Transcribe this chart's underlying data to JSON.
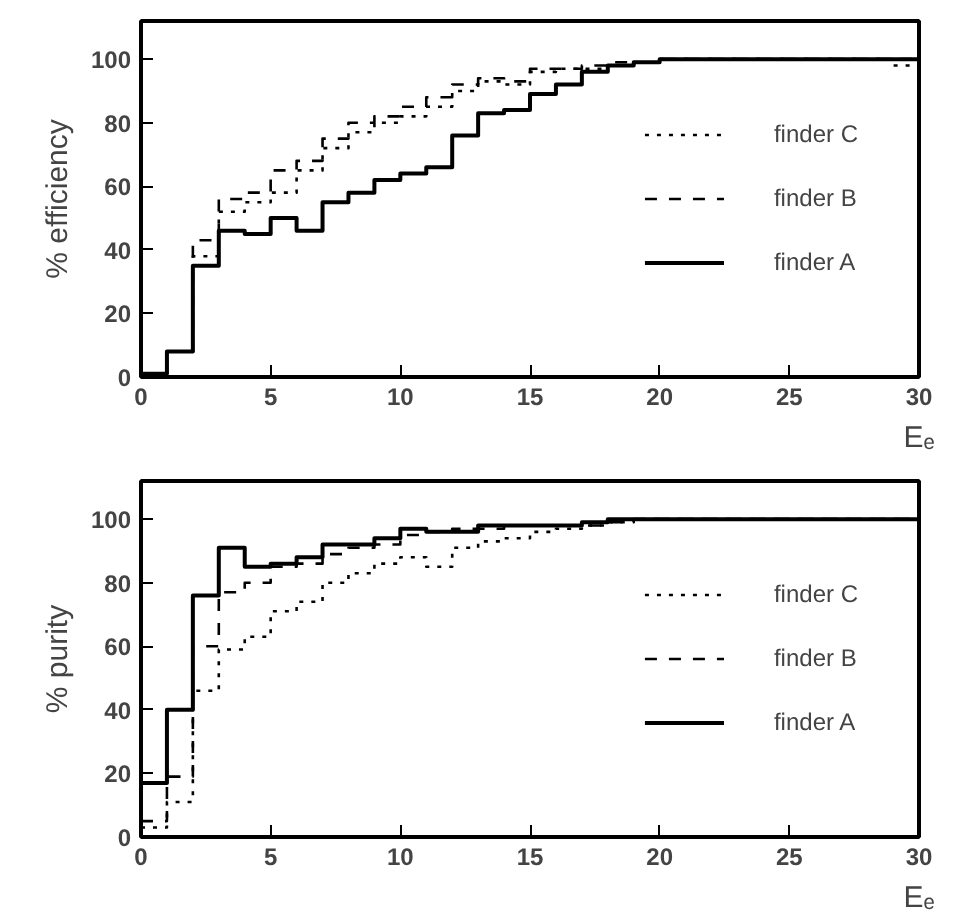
{
  "chart_data": [
    {
      "type": "step",
      "ylabel": "% efficiency",
      "xlabel": "Eₑ",
      "x": [
        0,
        1,
        2,
        3,
        4,
        5,
        6,
        7,
        8,
        9,
        10,
        11,
        12,
        13,
        14,
        15,
        16,
        17,
        18,
        19,
        20,
        21,
        22,
        23,
        24,
        25,
        26,
        27,
        28,
        29,
        30
      ],
      "xlim": [
        0,
        30
      ],
      "ylim": [
        0,
        112
      ],
      "xticks": [
        0,
        5,
        10,
        15,
        20,
        25,
        30
      ],
      "yticks": [
        0,
        20,
        40,
        60,
        80,
        100
      ],
      "grid": false,
      "legend": "right",
      "series": [
        {
          "name": "finder C",
          "color": "#000000",
          "line_style": "dotted",
          "values": [
            1,
            8,
            38,
            52,
            55,
            58,
            65,
            72,
            77,
            80,
            82,
            85,
            90,
            93,
            92,
            96,
            97,
            97,
            98,
            99,
            100,
            100,
            100,
            100,
            100,
            100,
            100,
            100,
            100,
            98,
            98
          ]
        },
        {
          "name": "finder B",
          "color": "#000000",
          "line_style": "dashed",
          "values": [
            1,
            8,
            43,
            56,
            58,
            65,
            68,
            75,
            80,
            82,
            85,
            88,
            92,
            94,
            93,
            97,
            97,
            98,
            99,
            99,
            100,
            100,
            100,
            100,
            100,
            100,
            100,
            100,
            100,
            100,
            100
          ]
        },
        {
          "name": "finder A",
          "color": "#000000",
          "line_style": "solid",
          "values": [
            1,
            8,
            35,
            46,
            45,
            50,
            46,
            55,
            58,
            62,
            64,
            66,
            76,
            83,
            84,
            89,
            92,
            96,
            98,
            99,
            100,
            100,
            100,
            100,
            100,
            100,
            100,
            100,
            100,
            100,
            100
          ]
        }
      ]
    },
    {
      "type": "step",
      "ylabel": "% purity",
      "xlabel": "Eₑ",
      "x": [
        0,
        1,
        2,
        3,
        4,
        5,
        6,
        7,
        8,
        9,
        10,
        11,
        12,
        13,
        14,
        15,
        16,
        17,
        18,
        19,
        20,
        21,
        22,
        23,
        24,
        25,
        26,
        27,
        28,
        29,
        30
      ],
      "xlim": [
        0,
        30
      ],
      "ylim": [
        0,
        112
      ],
      "xticks": [
        0,
        5,
        10,
        15,
        20,
        25,
        30
      ],
      "yticks": [
        0,
        20,
        40,
        60,
        80,
        100
      ],
      "grid": false,
      "legend": "right",
      "series": [
        {
          "name": "finder C",
          "color": "#000000",
          "line_style": "dotted",
          "values": [
            3,
            11,
            46,
            59,
            63,
            71,
            74,
            80,
            83,
            86,
            88,
            85,
            91,
            93,
            94,
            96,
            97,
            98,
            99,
            100,
            100,
            100,
            100,
            100,
            100,
            100,
            100,
            100,
            100,
            100,
            100
          ]
        },
        {
          "name": "finder B",
          "color": "#000000",
          "line_style": "dashed",
          "values": [
            5,
            19,
            60,
            77,
            80,
            85,
            86,
            89,
            91,
            92,
            95,
            96,
            97,
            97,
            98,
            98,
            98,
            98,
            99,
            100,
            100,
            100,
            100,
            100,
            100,
            100,
            100,
            100,
            100,
            100,
            100
          ]
        },
        {
          "name": "finder A",
          "color": "#000000",
          "line_style": "solid",
          "values": [
            17,
            40,
            76,
            91,
            85,
            86,
            88,
            92,
            92,
            94,
            97,
            96,
            96,
            98,
            98,
            98,
            98,
            99,
            100,
            100,
            100,
            100,
            100,
            100,
            100,
            100,
            100,
            100,
            100,
            100,
            100
          ]
        }
      ]
    }
  ]
}
